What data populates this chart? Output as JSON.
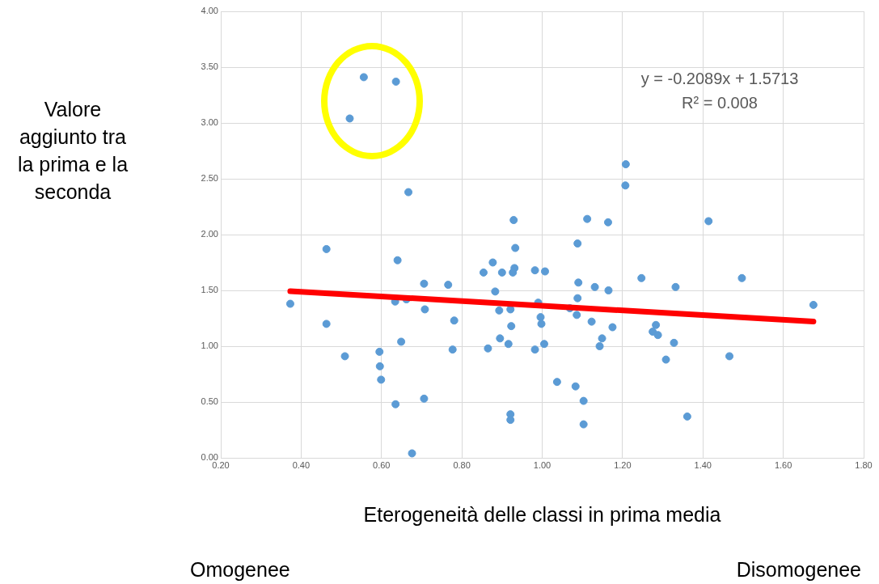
{
  "chart_data": {
    "type": "scatter",
    "xlabel": "Eterogeneità delle classi in prima media",
    "ylabel": "Valore aggiunto tra la prima e la seconda",
    "annotations": [
      "y = -0.2089x + 1.5713\nR² = 0.008",
      "Omogenee",
      "Disomogenee"
    ],
    "xlim": [
      0.2,
      1.8
    ],
    "ylim": [
      0,
      4
    ],
    "xticks": [
      {
        "value": 0.2,
        "label": "0.20"
      },
      {
        "value": 0.4,
        "label": "0.40"
      },
      {
        "value": 0.6,
        "label": "0.60"
      },
      {
        "value": 0.8,
        "label": "0.80"
      },
      {
        "value": 1.0,
        "label": "1.00"
      },
      {
        "value": 1.2,
        "label": "1.20"
      },
      {
        "value": 1.4,
        "label": "1.40"
      },
      {
        "value": 1.6,
        "label": "1.60"
      },
      {
        "value": 1.8,
        "label": "1.80"
      }
    ],
    "yticks": [
      {
        "value": 0,
        "label": "0.00"
      },
      {
        "value": 0.5,
        "label": "0.50"
      },
      {
        "value": 1.0,
        "label": "1.00"
      },
      {
        "value": 1.5,
        "label": "1.50"
      },
      {
        "value": 2.0,
        "label": "2.00"
      },
      {
        "value": 2.5,
        "label": "2.50"
      },
      {
        "value": 3.0,
        "label": "3.00"
      },
      {
        "value": 3.5,
        "label": "3.50"
      },
      {
        "value": 4.0,
        "label": "4.00"
      }
    ],
    "grid": true,
    "series": [
      {
        "marker": "circle",
        "color": "#5b9bd5",
        "x": [
          0.556,
          0.636,
          0.521,
          0.667,
          0.929,
          1.208,
          1.207,
          1.112,
          1.164,
          1.414,
          0.463,
          0.64,
          0.933,
          0.877,
          0.854,
          0.9,
          0.931,
          0.927,
          0.982,
          1.007,
          0.706,
          0.766,
          0.883,
          0.373,
          0.634,
          0.662,
          0.708,
          0.893,
          0.921,
          0.99,
          0.996,
          0.998,
          0.463,
          0.781,
          0.923,
          0.649,
          0.895,
          0.916,
          1.005,
          0.865,
          0.777,
          0.982,
          0.595,
          0.509,
          0.596,
          0.599,
          0.706,
          0.635,
          0.921,
          0.921,
          0.676,
          1.088,
          1.09,
          1.131,
          1.165,
          1.247,
          1.332,
          1.497,
          1.088,
          1.675,
          1.069,
          1.086,
          1.123,
          1.175,
          1.283,
          1.275,
          1.288,
          1.149,
          1.143,
          1.328,
          1.308,
          1.466,
          1.037,
          1.083,
          1.103,
          1.103,
          1.361
        ],
        "values": [
          3.41,
          3.37,
          3.04,
          2.38,
          2.13,
          2.63,
          2.44,
          2.14,
          2.11,
          2.12,
          1.87,
          1.77,
          1.88,
          1.75,
          1.66,
          1.66,
          1.7,
          1.66,
          1.68,
          1.67,
          1.56,
          1.55,
          1.49,
          1.38,
          1.4,
          1.42,
          1.33,
          1.32,
          1.33,
          1.39,
          1.26,
          1.2,
          1.2,
          1.23,
          1.18,
          1.04,
          1.07,
          1.02,
          1.02,
          0.98,
          0.97,
          0.97,
          0.95,
          0.91,
          0.82,
          0.7,
          0.53,
          0.48,
          0.39,
          0.34,
          0.04,
          1.92,
          1.57,
          1.53,
          1.5,
          1.61,
          1.53,
          1.61,
          1.43,
          1.37,
          1.34,
          1.28,
          1.22,
          1.17,
          1.19,
          1.13,
          1.1,
          1.07,
          1.0,
          1.03,
          0.88,
          0.91,
          0.68,
          0.64,
          0.51,
          0.3,
          0.37
        ]
      },
      {
        "type": "line",
        "color": "#ff0000",
        "x": [
          0.373,
          1.675
        ],
        "values": [
          1.493,
          1.221
        ]
      }
    ]
  }
}
